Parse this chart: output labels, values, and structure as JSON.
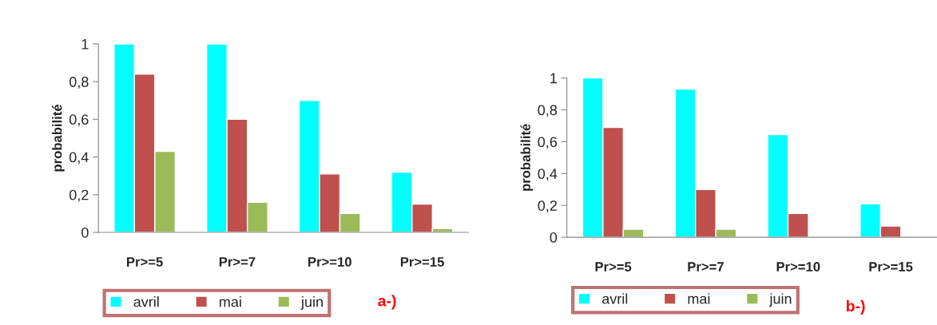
{
  "chart_data": [
    {
      "type": "bar",
      "ylabel": "probabilité",
      "categories": [
        "Pr>=5",
        "Pr>=7",
        "Pr>=10",
        "Pr>=15"
      ],
      "series": [
        {
          "name": "avril",
          "color": "#00ffff",
          "values": [
            1,
            1,
            0.7,
            0.32
          ]
        },
        {
          "name": "mai",
          "color": "#c0504d",
          "values": [
            0.84,
            0.6,
            0.31,
            0.15
          ]
        },
        {
          "name": "juin",
          "color": "#9bbb59",
          "values": [
            0.43,
            0.16,
            0.1,
            0.02
          ]
        }
      ],
      "ylim": [
        0,
        1
      ],
      "yticks": [
        0,
        {
          "value": 0.2,
          "label": "0,2"
        },
        {
          "value": 0.4,
          "label": "0,4"
        },
        {
          "value": 0.6,
          "label": "0,6"
        },
        {
          "value": 0.8,
          "label": "0,8"
        },
        1
      ],
      "grid": false,
      "legend": "bottom",
      "annotations": [
        "a-)"
      ]
    },
    {
      "type": "bar",
      "ylabel": "probabilité",
      "categories": [
        "Pr>=5",
        "Pr>=7",
        "Pr>=10",
        "Pr>=15"
      ],
      "series": [
        {
          "name": "avril",
          "color": "#00ffff",
          "values": [
            1,
            0.93,
            0.645,
            0.21
          ]
        },
        {
          "name": "mai",
          "color": "#c0504d",
          "values": [
            0.69,
            0.3,
            0.15,
            0.07
          ]
        },
        {
          "name": "juin",
          "color": "#9bbb59",
          "values": [
            0.05,
            0.05,
            null,
            null
          ]
        }
      ],
      "ylim": [
        0,
        1
      ],
      "yticks": [
        0,
        {
          "value": 0.2,
          "label": "0,2"
        },
        {
          "value": 0.4,
          "label": "0,4"
        },
        {
          "value": 0.6,
          "label": "0,6"
        },
        {
          "value": 0.8,
          "label": "0,8"
        },
        1
      ],
      "grid": false,
      "legend": "bottom",
      "annotations": [
        "b-)"
      ]
    }
  ]
}
